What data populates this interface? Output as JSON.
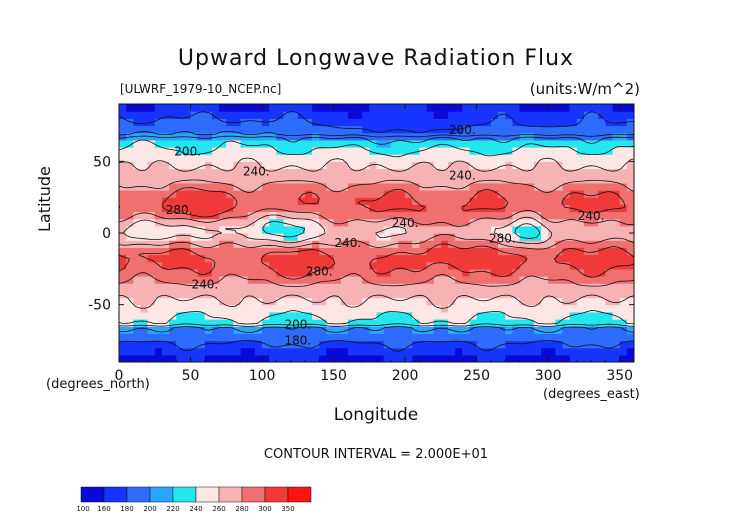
{
  "title": "Upward Longwave Radiation Flux",
  "filename": "[ULWRF_1979-10_NCEP.nc]",
  "units": "(units:W/m^2)",
  "contour_interval": "CONTOUR INTERVAL = 2.000E+01",
  "colors": {
    "bands": [
      "#0a0ad8",
      "#1636ff",
      "#2d6cff",
      "#2ba6ff",
      "#22e7ef",
      "#fde6e6",
      "#f7b3b3",
      "#f07070",
      "#f03a3a",
      "#ff1414"
    ],
    "contour_line": "#111111"
  },
  "chart_data": {
    "type": "heatmap",
    "title": "Upward Longwave Radiation Flux",
    "xlabel": "Longitude",
    "ylabel": "Latitude",
    "x_unit_label": "(degrees_east)",
    "y_unit_label": "(degrees_north)",
    "xlim": [
      0,
      360
    ],
    "ylim": [
      -90,
      90
    ],
    "xticks": [
      0,
      50,
      100,
      150,
      200,
      250,
      300,
      350
    ],
    "yticks": [
      -50,
      0,
      50
    ],
    "colorbar": {
      "levels": [
        100,
        160,
        180,
        200,
        220,
        240,
        260,
        280,
        300,
        350
      ],
      "labels": [
        "100",
        "160",
        "180",
        "200",
        "220",
        "240",
        "260",
        "280",
        "300",
        "350"
      ]
    },
    "contour_labels": [
      {
        "text": "200.",
        "lon": 48,
        "lat": 57
      },
      {
        "text": "240.",
        "lon": 96,
        "lat": 43
      },
      {
        "text": "280.",
        "lon": 42,
        "lat": 16
      },
      {
        "text": "240.",
        "lon": 160,
        "lat": -7
      },
      {
        "text": "280.",
        "lon": 140,
        "lat": -27
      },
      {
        "text": "240.",
        "lon": 60,
        "lat": -36
      },
      {
        "text": "240.",
        "lon": 200,
        "lat": 7
      },
      {
        "text": "240.",
        "lon": 240,
        "lat": 40
      },
      {
        "text": "200.",
        "lon": 240,
        "lat": 72
      },
      {
        "text": "280.",
        "lon": 268,
        "lat": -4
      },
      {
        "text": "240.",
        "lon": 330,
        "lat": 12
      },
      {
        "text": "200.",
        "lon": 125,
        "lat": -64
      },
      {
        "text": "180.",
        "lon": 125,
        "lat": -75
      }
    ],
    "zonal_bands": [
      {
        "lat_min": -90,
        "lat_max": -78,
        "level": "160-180"
      },
      {
        "lat_min": -78,
        "lat_max": -66,
        "level": "180-200"
      },
      {
        "lat_min": -66,
        "lat_max": -60,
        "level": "200-220"
      },
      {
        "lat_min": -60,
        "lat_max": -45,
        "level": "220-240"
      },
      {
        "lat_min": -45,
        "lat_max": -38,
        "level": "240-260"
      },
      {
        "lat_min": -38,
        "lat_max": -5,
        "level": "260-280"
      },
      {
        "lat_min": -5,
        "lat_max": 10,
        "level": "220-260"
      },
      {
        "lat_min": 10,
        "lat_max": 35,
        "level": "260-280"
      },
      {
        "lat_min": 35,
        "lat_max": 55,
        "level": "240-260"
      },
      {
        "lat_min": 55,
        "lat_max": 68,
        "level": "200-240"
      },
      {
        "lat_min": 68,
        "lat_max": 90,
        "level": "160-200"
      }
    ]
  }
}
